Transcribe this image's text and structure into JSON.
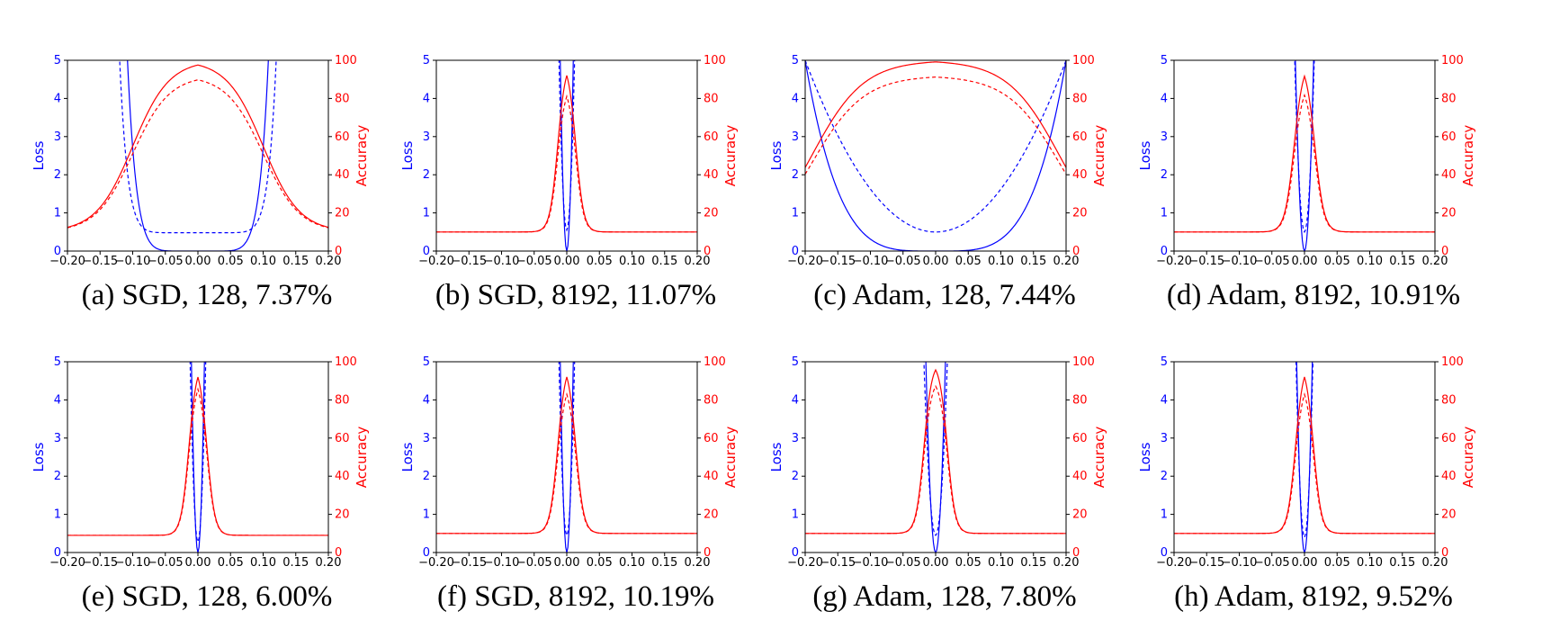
{
  "chart_data": [
    {
      "type": "line",
      "caption": "(a)  SGD, 128, 7.37%",
      "xlabel": "",
      "ylabel_left": "Loss",
      "ylabel_right": "Accuracy",
      "xlim": [
        -0.2,
        0.2
      ],
      "ylim_left": [
        0,
        5
      ],
      "ylim_right": [
        0,
        100
      ],
      "xticks": [
        "-0.20",
        "-0.15",
        "-0.10",
        "-0.05",
        "0.00",
        "0.05",
        "0.10",
        "0.15",
        "0.20"
      ],
      "yticks_left": [
        "0",
        "1",
        "2",
        "3",
        "4",
        "5"
      ],
      "yticks_right": [
        "0",
        "20",
        "40",
        "60",
        "80",
        "100"
      ],
      "colors": {
        "loss": "#0000ff",
        "accuracy": "#ff0000"
      },
      "params": {
        "lossMin": 0.48,
        "wTr": 0.108,
        "pTr": 8,
        "wTe": 0.12,
        "pTe": 10,
        "accMax": 100,
        "accTeMax": 92,
        "accFloor": 10,
        "wAcc": 0.1,
        "kAcc": 0.028
      }
    },
    {
      "type": "line",
      "caption": "(b)  SGD, 8192, 11.07%",
      "xlabel": "",
      "ylabel_left": "Loss",
      "ylabel_right": "Accuracy",
      "xlim": [
        -0.2,
        0.2
      ],
      "ylim_left": [
        0,
        5
      ],
      "ylim_right": [
        0,
        100
      ],
      "xticks": [
        "-0.20",
        "-0.15",
        "-0.10",
        "-0.05",
        "0.00",
        "0.05",
        "0.10",
        "0.15",
        "0.20"
      ],
      "yticks_left": [
        "0",
        "1",
        "2",
        "3",
        "4",
        "5"
      ],
      "yticks_right": [
        "0",
        "20",
        "40",
        "60",
        "80",
        "100"
      ],
      "colors": {
        "loss": "#0000ff",
        "accuracy": "#ff0000"
      },
      "params": {
        "lossMin": 0.55,
        "wTr": 0.01,
        "pTr": 2,
        "wTe": 0.012,
        "pTe": 2,
        "accMax": 100,
        "accTeMax": 88,
        "accFloor": 10,
        "wAcc": 0.014,
        "kAcc": 0.006
      }
    },
    {
      "type": "line",
      "caption": "(c)  Adam, 128, 7.44%",
      "xlabel": "",
      "ylabel_left": "Loss",
      "ylabel_right": "Accuracy",
      "xlim": [
        -0.2,
        0.2
      ],
      "ylim_left": [
        0,
        5
      ],
      "ylim_right": [
        0,
        100
      ],
      "xticks": [
        "-0.20",
        "-0.15",
        "-0.10",
        "-0.05",
        "0.00",
        "0.05",
        "0.10",
        "0.15",
        "0.20"
      ],
      "yticks_left": [
        "0",
        "1",
        "2",
        "3",
        "4",
        "5"
      ],
      "yticks_right": [
        "0",
        "20",
        "40",
        "60",
        "80",
        "100"
      ],
      "colors": {
        "loss": "#0000ff",
        "accuracy": "#ff0000"
      },
      "params": {
        "lossMin": 0.5,
        "wTr": 0.2,
        "pTr": 4,
        "wTe": 0.2,
        "pTe": 2,
        "accMax": 100,
        "accTeMax": 92,
        "accFloor": 0,
        "wAcc": 0.19,
        "kAcc": 0.04
      }
    },
    {
      "type": "line",
      "caption": "(d)  Adam, 8192, 10.91%",
      "xlabel": "",
      "ylabel_left": "Loss",
      "ylabel_right": "Accuracy",
      "xlim": [
        -0.2,
        0.2
      ],
      "ylim_left": [
        0,
        5
      ],
      "ylim_right": [
        0,
        100
      ],
      "xticks": [
        "-0.20",
        "-0.15",
        "-0.10",
        "-0.05",
        "0.00",
        "0.05",
        "0.10",
        "0.15",
        "0.20"
      ],
      "yticks_left": [
        "0",
        "1",
        "2",
        "3",
        "4",
        "5"
      ],
      "yticks_right": [
        "0",
        "20",
        "40",
        "60",
        "80",
        "100"
      ],
      "colors": {
        "loss": "#0000ff",
        "accuracy": "#ff0000"
      },
      "params": {
        "lossMin": 0.5,
        "wTr": 0.014,
        "pTr": 2,
        "wTe": 0.015,
        "pTe": 2,
        "accMax": 100,
        "accTeMax": 89,
        "accFloor": 10,
        "wAcc": 0.016,
        "kAcc": 0.007
      }
    },
    {
      "type": "line",
      "caption": "(e)  SGD, 128, 6.00%",
      "xlabel": "",
      "ylabel_left": "Loss",
      "ylabel_right": "Accuracy",
      "xlim": [
        -0.2,
        0.2
      ],
      "ylim_left": [
        0,
        5
      ],
      "ylim_right": [
        0,
        100
      ],
      "xticks": [
        "-0.20",
        "-0.15",
        "-0.10",
        "-0.05",
        "0.00",
        "0.05",
        "0.10",
        "0.15",
        "0.20"
      ],
      "yticks_left": [
        "0",
        "1",
        "2",
        "3",
        "4",
        "5"
      ],
      "yticks_right": [
        "0",
        "20",
        "40",
        "60",
        "80",
        "100"
      ],
      "colors": {
        "loss": "#0000ff",
        "accuracy": "#ff0000"
      },
      "params": {
        "lossMin": 0.28,
        "wTr": 0.01,
        "pTr": 2,
        "wTe": 0.012,
        "pTe": 2,
        "accMax": 100,
        "accTeMax": 93,
        "accFloor": 9,
        "wAcc": 0.014,
        "kAcc": 0.006
      }
    },
    {
      "type": "line",
      "caption": "(f)  SGD, 8192, 10.19%",
      "xlabel": "",
      "ylabel_left": "Loss",
      "ylabel_right": "Accuracy",
      "xlim": [
        -0.2,
        0.2
      ],
      "ylim_left": [
        0,
        5
      ],
      "ylim_right": [
        0,
        100
      ],
      "xticks": [
        "-0.20",
        "-0.15",
        "-0.10",
        "-0.05",
        "0.00",
        "0.05",
        "0.10",
        "0.15",
        "0.20"
      ],
      "yticks_left": [
        "0",
        "1",
        "2",
        "3",
        "4",
        "5"
      ],
      "yticks_right": [
        "0",
        "20",
        "40",
        "60",
        "80",
        "100"
      ],
      "colors": {
        "loss": "#0000ff",
        "accuracy": "#ff0000"
      },
      "params": {
        "lossMin": 0.45,
        "wTr": 0.01,
        "pTr": 2,
        "wTe": 0.012,
        "pTe": 2,
        "accMax": 100,
        "accTeMax": 90,
        "accFloor": 10,
        "wAcc": 0.014,
        "kAcc": 0.006
      }
    },
    {
      "type": "line",
      "caption": "(g)  Adam, 128, 7.80%",
      "xlabel": "",
      "ylabel_left": "Loss",
      "ylabel_right": "Accuracy",
      "xlim": [
        -0.2,
        0.2
      ],
      "ylim_left": [
        0,
        5
      ],
      "ylim_right": [
        0,
        100
      ],
      "xticks": [
        "-0.20",
        "-0.15",
        "-0.10",
        "-0.05",
        "0.00",
        "0.05",
        "0.10",
        "0.15",
        "0.20"
      ],
      "yticks_left": [
        "0",
        "1",
        "2",
        "3",
        "4",
        "5"
      ],
      "yticks_right": [
        "0",
        "20",
        "40",
        "60",
        "80",
        "100"
      ],
      "colors": {
        "loss": "#0000ff",
        "accuracy": "#ff0000"
      },
      "params": {
        "lossMin": 0.45,
        "wTr": 0.015,
        "pTr": 2,
        "wTe": 0.018,
        "pTe": 2,
        "accMax": 100,
        "accTeMax": 91,
        "accFloor": 10,
        "wAcc": 0.018,
        "kAcc": 0.006
      }
    },
    {
      "type": "line",
      "caption": "(h)  Adam, 8192, 9.52%",
      "xlabel": "",
      "ylabel_left": "Loss",
      "ylabel_right": "Accuracy",
      "xlim": [
        -0.2,
        0.2
      ],
      "ylim_left": [
        0,
        5
      ],
      "ylim_right": [
        0,
        100
      ],
      "xticks": [
        "-0.20",
        "-0.15",
        "-0.10",
        "-0.05",
        "0.00",
        "0.05",
        "0.10",
        "0.15",
        "0.20"
      ],
      "yticks_left": [
        "0",
        "1",
        "2",
        "3",
        "4",
        "5"
      ],
      "yticks_right": [
        "0",
        "20",
        "40",
        "60",
        "80",
        "100"
      ],
      "colors": {
        "loss": "#0000ff",
        "accuracy": "#ff0000"
      },
      "params": {
        "lossMin": 0.4,
        "wTr": 0.012,
        "pTr": 2,
        "wTe": 0.013,
        "pTe": 2,
        "accMax": 100,
        "accTeMax": 90,
        "accFloor": 10,
        "wAcc": 0.014,
        "kAcc": 0.006
      }
    }
  ]
}
